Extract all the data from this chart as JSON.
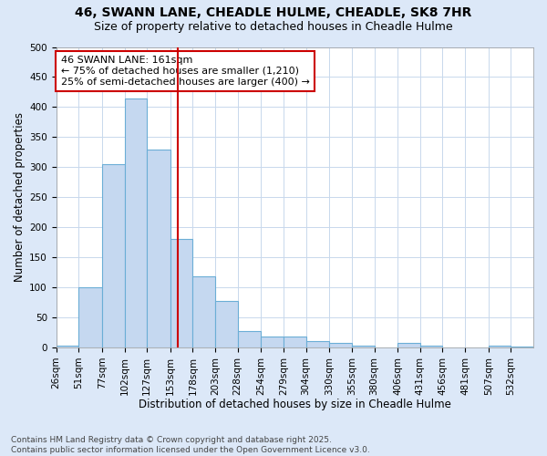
{
  "title": "46, SWANN LANE, CHEADLE HULME, CHEADLE, SK8 7HR",
  "subtitle": "Size of property relative to detached houses in Cheadle Hulme",
  "xlabel": "Distribution of detached houses by size in Cheadle Hulme",
  "ylabel": "Number of detached properties",
  "bin_labels": [
    "26sqm",
    "51sqm",
    "77sqm",
    "102sqm",
    "127sqm",
    "153sqm",
    "178sqm",
    "203sqm",
    "228sqm",
    "254sqm",
    "279sqm",
    "304sqm",
    "330sqm",
    "355sqm",
    "380sqm",
    "406sqm",
    "431sqm",
    "456sqm",
    "481sqm",
    "507sqm",
    "532sqm"
  ],
  "bin_edges": [
    26,
    51,
    77,
    102,
    127,
    153,
    178,
    203,
    228,
    254,
    279,
    304,
    330,
    355,
    380,
    406,
    431,
    456,
    481,
    507,
    532,
    557
  ],
  "bar_heights": [
    3,
    100,
    305,
    415,
    330,
    180,
    118,
    78,
    28,
    18,
    18,
    10,
    8,
    3,
    0,
    8,
    3,
    0,
    0,
    3,
    2
  ],
  "bar_color": "#c5d8f0",
  "bar_edge_color": "#6baed6",
  "property_size": 161,
  "vline_color": "#cc0000",
  "annotation_text": "46 SWANN LANE: 161sqm\n← 75% of detached houses are smaller (1,210)\n25% of semi-detached houses are larger (400) →",
  "annotation_box_color": "#ffffff",
  "annotation_box_edge_color": "#cc0000",
  "grid_color": "#c8d8ec",
  "background_color": "#dce8f8",
  "axes_background": "#ffffff",
  "ylim": [
    0,
    500
  ],
  "yticks": [
    0,
    50,
    100,
    150,
    200,
    250,
    300,
    350,
    400,
    450,
    500
  ],
  "footer_text": "Contains HM Land Registry data © Crown copyright and database right 2025.\nContains public sector information licensed under the Open Government Licence v3.0.",
  "title_fontsize": 10,
  "subtitle_fontsize": 9,
  "xlabel_fontsize": 8.5,
  "ylabel_fontsize": 8.5,
  "tick_fontsize": 7.5,
  "annotation_fontsize": 8,
  "footer_fontsize": 6.5
}
